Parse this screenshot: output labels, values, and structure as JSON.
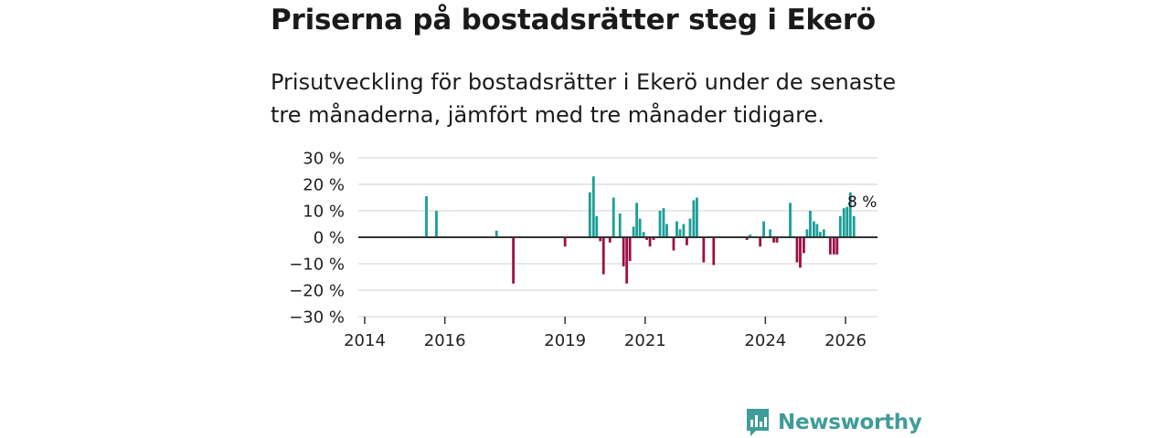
{
  "header": {
    "title": "Priserna på bostadsrätter steg i Ekerö",
    "subtitle": "Prisutveckling för bostadsrätter i Ekerö under de senaste tre månaderna, jämfört med tre månader tidigare."
  },
  "logo": {
    "text": "Newsworthy",
    "icon": "newsworthy-bar-chart-icon"
  },
  "colors": {
    "positive": "#1a9e97",
    "negative": "#9b1046",
    "grid": "#d9d9d9",
    "zero": "#333333",
    "logo": "#3f9c99"
  },
  "chart_data": {
    "type": "bar",
    "title": "Priserna på bostadsrätter steg i Ekerö",
    "xlabel": "",
    "ylabel": "",
    "ylim": [
      -30,
      30
    ],
    "yticks": [
      30,
      20,
      10,
      0,
      -10,
      -20,
      -30
    ],
    "ytick_labels": [
      "30 %",
      "20 %",
      "10 %",
      "0 %",
      "−10 %",
      "−20 %",
      "−30 %"
    ],
    "xlim": [
      2014.0,
      2026.83
    ],
    "xticks": [
      2014,
      2016,
      2019,
      2021,
      2024,
      2026
    ],
    "xtick_labels": [
      "2014",
      "2016",
      "2019",
      "2021",
      "2024",
      "2026"
    ],
    "last_value_label": "8 %",
    "series": [
      {
        "name": "Prisutveckling",
        "points": [
          {
            "x": 2015.54,
            "y": 15.5
          },
          {
            "x": 2015.79,
            "y": 10
          },
          {
            "x": 2017.29,
            "y": 2.5
          },
          {
            "x": 2017.71,
            "y": -17.5
          },
          {
            "x": 2019.0,
            "y": -3.5
          },
          {
            "x": 2019.62,
            "y": 17
          },
          {
            "x": 2019.71,
            "y": 23
          },
          {
            "x": 2019.79,
            "y": 8
          },
          {
            "x": 2019.88,
            "y": -1.5
          },
          {
            "x": 2019.96,
            "y": -14
          },
          {
            "x": 2020.12,
            "y": -2
          },
          {
            "x": 2020.21,
            "y": 15
          },
          {
            "x": 2020.37,
            "y": 9
          },
          {
            "x": 2020.46,
            "y": -11
          },
          {
            "x": 2020.54,
            "y": -17.5
          },
          {
            "x": 2020.62,
            "y": -9
          },
          {
            "x": 2020.71,
            "y": 4
          },
          {
            "x": 2020.79,
            "y": 13
          },
          {
            "x": 2020.87,
            "y": 7
          },
          {
            "x": 2020.96,
            "y": 2
          },
          {
            "x": 2021.04,
            "y": -1
          },
          {
            "x": 2021.12,
            "y": -3.5
          },
          {
            "x": 2021.21,
            "y": -1
          },
          {
            "x": 2021.37,
            "y": 10
          },
          {
            "x": 2021.46,
            "y": 11
          },
          {
            "x": 2021.54,
            "y": 5
          },
          {
            "x": 2021.71,
            "y": -5
          },
          {
            "x": 2021.79,
            "y": 6
          },
          {
            "x": 2021.87,
            "y": 3
          },
          {
            "x": 2021.96,
            "y": 5
          },
          {
            "x": 2022.04,
            "y": -3
          },
          {
            "x": 2022.12,
            "y": 7
          },
          {
            "x": 2022.21,
            "y": 14
          },
          {
            "x": 2022.29,
            "y": 15
          },
          {
            "x": 2022.46,
            "y": -9.5
          },
          {
            "x": 2022.71,
            "y": -10.5
          },
          {
            "x": 2023.54,
            "y": -1
          },
          {
            "x": 2023.62,
            "y": 1
          },
          {
            "x": 2023.87,
            "y": -3.5
          },
          {
            "x": 2023.96,
            "y": 6
          },
          {
            "x": 2024.12,
            "y": 3
          },
          {
            "x": 2024.21,
            "y": -2
          },
          {
            "x": 2024.29,
            "y": -2
          },
          {
            "x": 2024.62,
            "y": 13
          },
          {
            "x": 2024.79,
            "y": -9.5
          },
          {
            "x": 2024.87,
            "y": -11.5
          },
          {
            "x": 2024.96,
            "y": -6
          },
          {
            "x": 2025.04,
            "y": 3
          },
          {
            "x": 2025.12,
            "y": 10
          },
          {
            "x": 2025.21,
            "y": 6
          },
          {
            "x": 2025.29,
            "y": 5
          },
          {
            "x": 2025.37,
            "y": 2
          },
          {
            "x": 2025.46,
            "y": 3
          },
          {
            "x": 2025.62,
            "y": -6.5
          },
          {
            "x": 2025.71,
            "y": -6.5
          },
          {
            "x": 2025.79,
            "y": -6.5
          },
          {
            "x": 2025.87,
            "y": 8
          },
          {
            "x": 2025.96,
            "y": 11
          },
          {
            "x": 2026.04,
            "y": 11.5
          },
          {
            "x": 2026.12,
            "y": 17
          },
          {
            "x": 2026.21,
            "y": 8
          }
        ]
      }
    ]
  }
}
